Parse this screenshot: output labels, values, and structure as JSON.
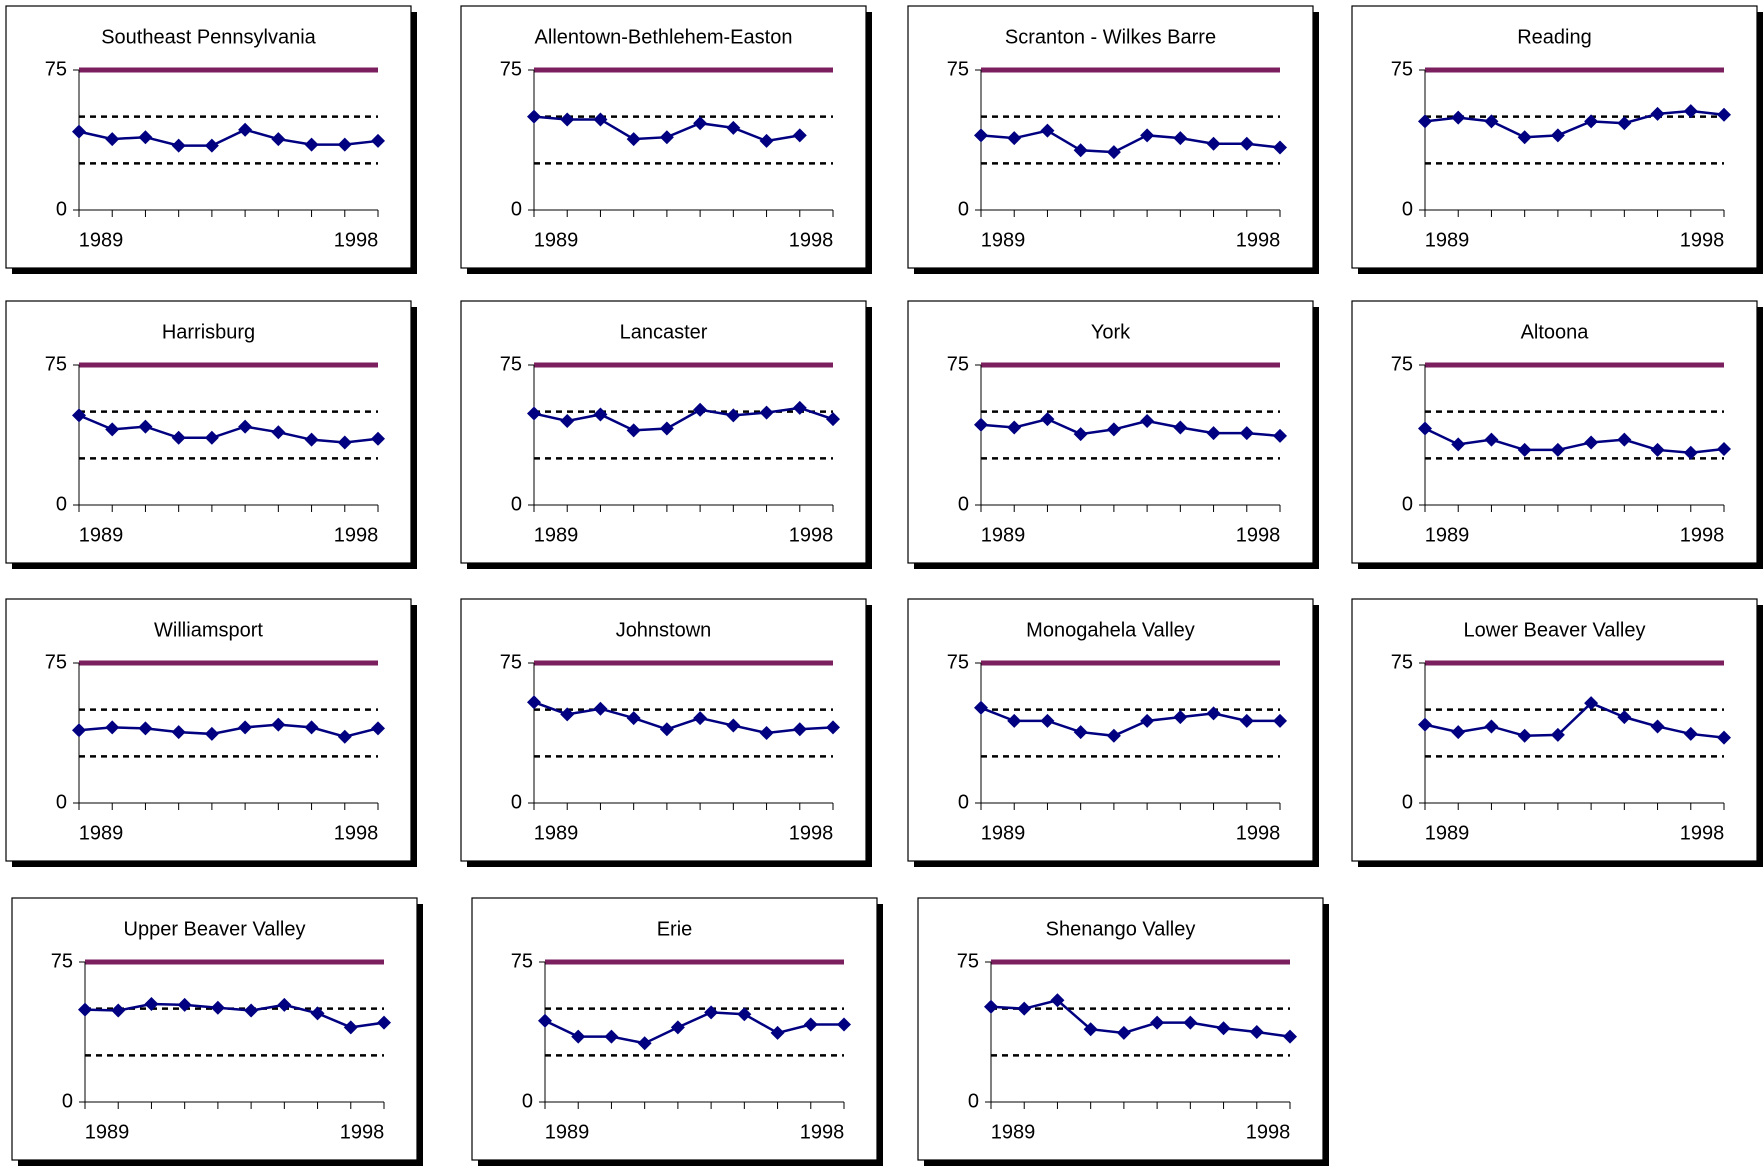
{
  "chart_data": [
    {
      "type": "line",
      "title": "Southeast Pennsylvania",
      "categories": [
        "1989",
        null,
        null,
        null,
        null,
        null,
        null,
        null,
        null,
        "1998"
      ],
      "values": [
        42,
        38,
        39,
        34.5,
        34.5,
        43,
        38,
        35,
        35,
        37
      ],
      "color": "#000080",
      "ylim": [
        0,
        75
      ],
      "yticks": [
        0,
        75
      ],
      "reference_lines": [
        {
          "value": 75,
          "color": "#7b1f5e",
          "style": "solid"
        },
        {
          "value": 50,
          "color": "#000000",
          "style": "dashed"
        },
        {
          "value": 25,
          "color": "#000000",
          "style": "dashed"
        }
      ]
    },
    {
      "type": "line",
      "title": "Allentown-Bethlehem-Easton",
      "categories": [
        "1989",
        null,
        null,
        null,
        null,
        null,
        null,
        null,
        null,
        "1998"
      ],
      "values": [
        50,
        48.5,
        48.5,
        38,
        39,
        46.5,
        44,
        37,
        40,
        null
      ],
      "color": "#000080",
      "ylim": [
        0,
        75
      ],
      "yticks": [
        0,
        75
      ],
      "reference_lines": [
        {
          "value": 75,
          "color": "#7b1f5e",
          "style": "solid"
        },
        {
          "value": 50,
          "color": "#000000",
          "style": "dashed"
        },
        {
          "value": 25,
          "color": "#000000",
          "style": "dashed"
        }
      ]
    },
    {
      "type": "line",
      "title": "Scranton - Wilkes Barre",
      "categories": [
        "1989",
        null,
        null,
        null,
        null,
        null,
        null,
        null,
        null,
        "1998"
      ],
      "values": [
        40,
        38.5,
        42.5,
        32,
        31,
        40,
        38.5,
        35.5,
        35.5,
        33.5
      ],
      "color": "#000080",
      "ylim": [
        0,
        75
      ],
      "yticks": [
        0,
        75
      ],
      "reference_lines": [
        {
          "value": 75,
          "color": "#7b1f5e",
          "style": "solid"
        },
        {
          "value": 50,
          "color": "#000000",
          "style": "dashed"
        },
        {
          "value": 25,
          "color": "#000000",
          "style": "dashed"
        }
      ]
    },
    {
      "type": "line",
      "title": "Reading",
      "categories": [
        "1989",
        null,
        null,
        null,
        null,
        null,
        null,
        null,
        null,
        "1998"
      ],
      "values": [
        47.5,
        49.5,
        47.5,
        39,
        40,
        47.5,
        46.5,
        51.5,
        53,
        51
      ],
      "color": "#000080",
      "ylim": [
        0,
        75
      ],
      "yticks": [
        0,
        75
      ],
      "reference_lines": [
        {
          "value": 75,
          "color": "#7b1f5e",
          "style": "solid"
        },
        {
          "value": 50,
          "color": "#000000",
          "style": "dashed"
        },
        {
          "value": 25,
          "color": "#000000",
          "style": "dashed"
        }
      ]
    },
    {
      "type": "line",
      "title": "Harrisburg",
      "categories": [
        "1989",
        null,
        null,
        null,
        null,
        null,
        null,
        null,
        null,
        "1998"
      ],
      "values": [
        48,
        40.5,
        42,
        36,
        36,
        42,
        39,
        35,
        33.5,
        35.5
      ],
      "color": "#000080",
      "ylim": [
        0,
        75
      ],
      "yticks": [
        0,
        75
      ],
      "reference_lines": [
        {
          "value": 75,
          "color": "#7b1f5e",
          "style": "solid"
        },
        {
          "value": 50,
          "color": "#000000",
          "style": "dashed"
        },
        {
          "value": 25,
          "color": "#000000",
          "style": "dashed"
        }
      ]
    },
    {
      "type": "line",
      "title": "Lancaster",
      "categories": [
        "1989",
        null,
        null,
        null,
        null,
        null,
        null,
        null,
        null,
        "1998"
      ],
      "values": [
        49,
        45,
        48.5,
        40,
        41,
        51,
        48,
        49.5,
        52,
        46
      ],
      "color": "#000080",
      "ylim": [
        0,
        75
      ],
      "yticks": [
        0,
        75
      ],
      "reference_lines": [
        {
          "value": 75,
          "color": "#7b1f5e",
          "style": "solid"
        },
        {
          "value": 50,
          "color": "#000000",
          "style": "dashed"
        },
        {
          "value": 25,
          "color": "#000000",
          "style": "dashed"
        }
      ]
    },
    {
      "type": "line",
      "title": "York",
      "categories": [
        "1989",
        null,
        null,
        null,
        null,
        null,
        null,
        null,
        null,
        "1998"
      ],
      "values": [
        43,
        41.5,
        46,
        38,
        40.5,
        45,
        41.5,
        38.5,
        38.5,
        37
      ],
      "color": "#000080",
      "ylim": [
        0,
        75
      ],
      "yticks": [
        0,
        75
      ],
      "reference_lines": [
        {
          "value": 75,
          "color": "#7b1f5e",
          "style": "solid"
        },
        {
          "value": 50,
          "color": "#000000",
          "style": "dashed"
        },
        {
          "value": 25,
          "color": "#000000",
          "style": "dashed"
        }
      ]
    },
    {
      "type": "line",
      "title": "Altoona",
      "categories": [
        "1989",
        null,
        null,
        null,
        null,
        null,
        null,
        null,
        null,
        "1998"
      ],
      "values": [
        41,
        32.5,
        35,
        29.5,
        29.5,
        33.5,
        35,
        29.5,
        28,
        30
      ],
      "color": "#000080",
      "ylim": [
        0,
        75
      ],
      "yticks": [
        0,
        75
      ],
      "reference_lines": [
        {
          "value": 75,
          "color": "#7b1f5e",
          "style": "solid"
        },
        {
          "value": 50,
          "color": "#000000",
          "style": "dashed"
        },
        {
          "value": 25,
          "color": "#000000",
          "style": "dashed"
        }
      ]
    },
    {
      "type": "line",
      "title": "Williamsport",
      "categories": [
        "1989",
        null,
        null,
        null,
        null,
        null,
        null,
        null,
        null,
        "1998"
      ],
      "values": [
        39,
        40.5,
        40,
        38,
        37,
        40.5,
        42,
        40.5,
        35.5,
        40
      ],
      "color": "#000080",
      "ylim": [
        0,
        75
      ],
      "yticks": [
        0,
        75
      ],
      "reference_lines": [
        {
          "value": 75,
          "color": "#7b1f5e",
          "style": "solid"
        },
        {
          "value": 50,
          "color": "#000000",
          "style": "dashed"
        },
        {
          "value": 25,
          "color": "#000000",
          "style": "dashed"
        }
      ]
    },
    {
      "type": "line",
      "title": "Johnstown",
      "categories": [
        "1989",
        null,
        null,
        null,
        null,
        null,
        null,
        null,
        null,
        "1998"
      ],
      "values": [
        54,
        47.5,
        50.5,
        45.5,
        39.5,
        45.5,
        41.5,
        37.5,
        39.5,
        40.5
      ],
      "color": "#000080",
      "ylim": [
        0,
        75
      ],
      "yticks": [
        0,
        75
      ],
      "reference_lines": [
        {
          "value": 75,
          "color": "#7b1f5e",
          "style": "solid"
        },
        {
          "value": 50,
          "color": "#000000",
          "style": "dashed"
        },
        {
          "value": 25,
          "color": "#000000",
          "style": "dashed"
        }
      ]
    },
    {
      "type": "line",
      "title": "Monogahela Valley",
      "categories": [
        "1989",
        null,
        null,
        null,
        null,
        null,
        null,
        null,
        null,
        "1998"
      ],
      "values": [
        51,
        44,
        44,
        38,
        36,
        44,
        46,
        48,
        44,
        44
      ],
      "color": "#000080",
      "ylim": [
        0,
        75
      ],
      "yticks": [
        0,
        75
      ],
      "reference_lines": [
        {
          "value": 75,
          "color": "#7b1f5e",
          "style": "solid"
        },
        {
          "value": 50,
          "color": "#000000",
          "style": "dashed"
        },
        {
          "value": 25,
          "color": "#000000",
          "style": "dashed"
        }
      ]
    },
    {
      "type": "line",
      "title": "Lower Beaver Valley",
      "categories": [
        "1989",
        null,
        null,
        null,
        null,
        null,
        null,
        null,
        null,
        "1998"
      ],
      "values": [
        42,
        38,
        41,
        36,
        36.5,
        53.5,
        46,
        41,
        37,
        35
      ],
      "color": "#000080",
      "ylim": [
        0,
        75
      ],
      "yticks": [
        0,
        75
      ],
      "reference_lines": [
        {
          "value": 75,
          "color": "#7b1f5e",
          "style": "solid"
        },
        {
          "value": 50,
          "color": "#000000",
          "style": "dashed"
        },
        {
          "value": 25,
          "color": "#000000",
          "style": "dashed"
        }
      ]
    },
    {
      "type": "line",
      "title": "Upper Beaver Valley",
      "categories": [
        "1989",
        null,
        null,
        null,
        null,
        null,
        null,
        null,
        null,
        "1998"
      ],
      "values": [
        49.5,
        49,
        52.5,
        52,
        50.5,
        49,
        52,
        47.5,
        40,
        42.5
      ],
      "color": "#000080",
      "ylim": [
        0,
        75
      ],
      "yticks": [
        0,
        75
      ],
      "reference_lines": [
        {
          "value": 75,
          "color": "#7b1f5e",
          "style": "solid"
        },
        {
          "value": 50,
          "color": "#000000",
          "style": "dashed"
        },
        {
          "value": 25,
          "color": "#000000",
          "style": "dashed"
        }
      ]
    },
    {
      "type": "line",
      "title": "Erie",
      "categories": [
        "1989",
        null,
        null,
        null,
        null,
        null,
        null,
        null,
        null,
        "1998"
      ],
      "values": [
        43.5,
        35,
        35,
        31.5,
        40,
        48,
        47,
        37,
        41.5,
        41.5
      ],
      "color": "#000080",
      "ylim": [
        0,
        75
      ],
      "yticks": [
        0,
        75
      ],
      "reference_lines": [
        {
          "value": 75,
          "color": "#7b1f5e",
          "style": "solid"
        },
        {
          "value": 50,
          "color": "#000000",
          "style": "dashed"
        },
        {
          "value": 25,
          "color": "#000000",
          "style": "dashed"
        }
      ]
    },
    {
      "type": "line",
      "title": "Shenango Valley",
      "categories": [
        "1989",
        null,
        null,
        null,
        null,
        null,
        null,
        null,
        null,
        "1998"
      ],
      "values": [
        51,
        50,
        54.5,
        39,
        37,
        42.5,
        42.5,
        39.5,
        37.5,
        35
      ],
      "color": "#000080",
      "ylim": [
        0,
        75
      ],
      "yticks": [
        0,
        75
      ],
      "reference_lines": [
        {
          "value": 75,
          "color": "#7b1f5e",
          "style": "solid"
        },
        {
          "value": 50,
          "color": "#000000",
          "style": "dashed"
        },
        {
          "value": 25,
          "color": "#000000",
          "style": "dashed"
        }
      ]
    }
  ]
}
